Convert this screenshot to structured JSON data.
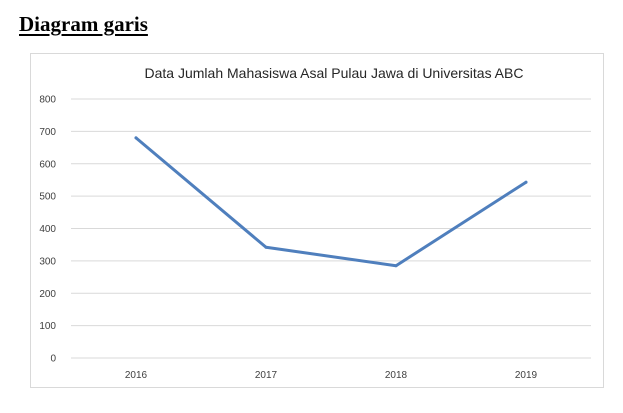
{
  "page": {
    "heading": "Diagram garis"
  },
  "chart_data": {
    "type": "line",
    "title": "Data Jumlah Mahasiswa Asal Pulau Jawa di Universitas ABC",
    "xlabel": "",
    "ylabel": "",
    "categories": [
      "2016",
      "2017",
      "2018",
      "2019"
    ],
    "series": [
      {
        "values": [
          680,
          342,
          285,
          543
        ],
        "color": "#4f7fbd"
      }
    ],
    "ylim": [
      0,
      800
    ],
    "yticks": [
      0,
      100,
      200,
      300,
      400,
      500,
      600,
      700,
      800
    ],
    "grid": true,
    "legend": "none"
  }
}
